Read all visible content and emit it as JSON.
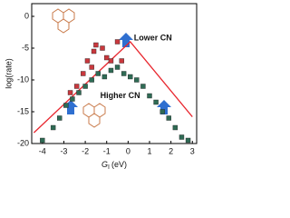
{
  "chart_data": {
    "type": "scatter",
    "x_label": "G",
    "x_label_sub": "I",
    "x_label_unit": "(eV)",
    "y_label": "log(rate)",
    "xlim": [
      -4.5,
      3.2
    ],
    "xticks": [
      -4,
      -3,
      -2,
      -1,
      0,
      1,
      2,
      3
    ],
    "ylim": [
      -20,
      2
    ],
    "yticks": [
      0,
      -5,
      -10,
      -15,
      -20
    ],
    "series": [
      {
        "name": "Lower CN",
        "style": "line",
        "color": "#e8262e",
        "x": [
          -4.4,
          0.1,
          3.0
        ],
        "values": [
          -18.3,
          -4,
          -15.8
        ]
      },
      {
        "style": "points",
        "color": "#c9383d",
        "x": [
          -2.7,
          -2.4,
          -2.1,
          -1.9,
          -1.7,
          -1.6,
          -1.5,
          -1.2,
          -1.0,
          -0.8,
          -0.5,
          -0.3
        ],
        "values": [
          -12,
          -11,
          -9,
          -7,
          -8,
          -5.5,
          -4.5,
          -5,
          -6.5,
          -7,
          -4,
          -7
        ]
      },
      {
        "name": "Higher CN",
        "style": "points",
        "color": "#2f6b55",
        "x": [
          -4,
          -3.5,
          -3.2,
          -2.9,
          -2.6,
          -2.3,
          -2.0,
          -1.7,
          -1.4,
          -1.1,
          -0.8,
          -0.5,
          -0.2,
          0.1,
          0.4,
          0.7,
          1.0,
          1.3,
          1.6,
          1.9,
          2.2,
          2.5,
          2.8
        ],
        "values": [
          -19.5,
          -17.5,
          -16,
          -14,
          -13,
          -12,
          -11,
          -10,
          -9,
          -9.5,
          -8.5,
          -8,
          -9,
          -9.5,
          -10,
          -11,
          -12.5,
          -13.5,
          -15,
          -16,
          -17.5,
          -19,
          -19.5
        ]
      }
    ]
  }
}
